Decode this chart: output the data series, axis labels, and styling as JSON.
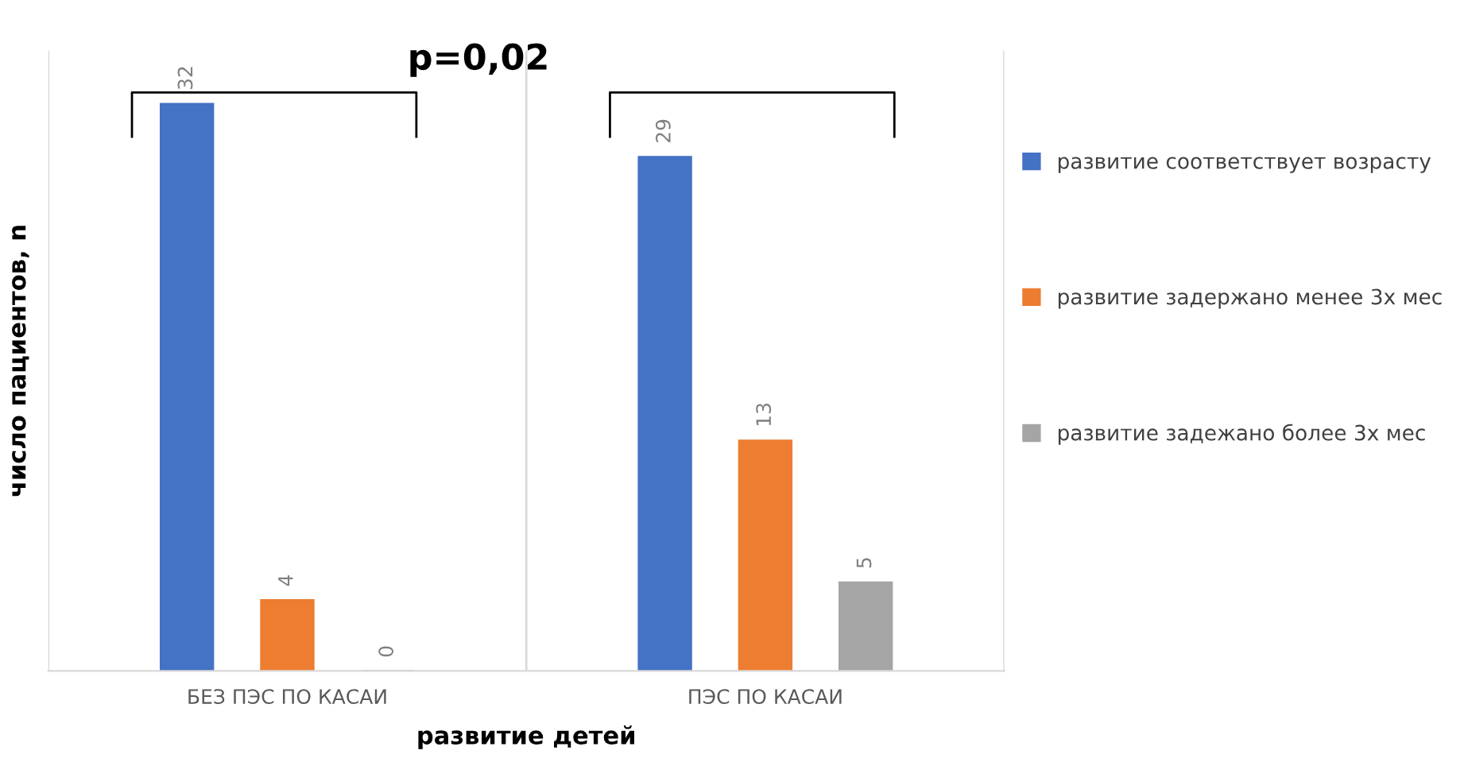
{
  "chart_data": {
    "type": "bar",
    "xlabel": "развитие детей",
    "ylabel": "число пациентов, n",
    "categories": [
      "БЕЗ ПЭС ПО КАСАИ",
      "ПЭС ПО КАСАИ"
    ],
    "series": [
      {
        "name": "развитие соответствует возрасту",
        "color": "#4472c4",
        "values": [
          32,
          29
        ]
      },
      {
        "name": "развитие задержано менее 3х мес",
        "color": "#ed7d31",
        "values": [
          4,
          13
        ]
      },
      {
        "name": "развитие задежано более 3х мес",
        "color": "#a5a5a5",
        "values": [
          0,
          5
        ]
      }
    ],
    "ylim": [
      0,
      35
    ],
    "tick_labels": "x",
    "data_labels": true,
    "legend": "right",
    "annotations": [
      "p=0,02"
    ]
  }
}
